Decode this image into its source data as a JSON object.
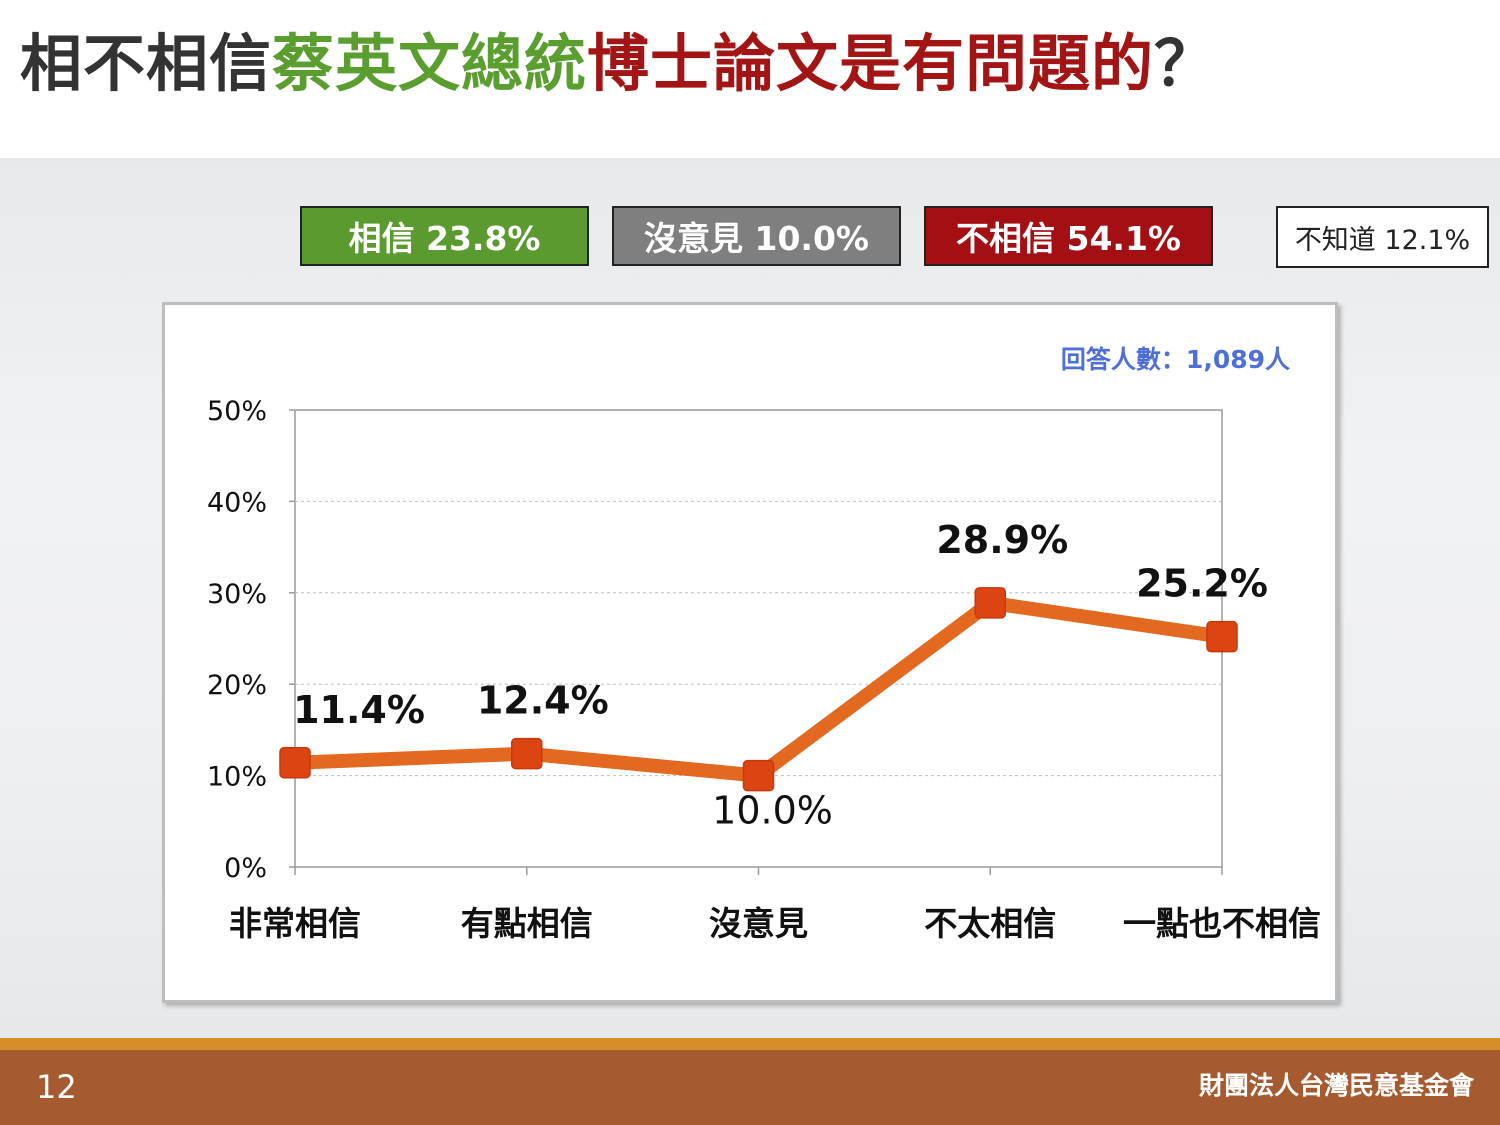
{
  "title": {
    "part1": "相不相信",
    "part2": "蔡英文總統",
    "part3": "博士論文是有問題的",
    "part4": "？"
  },
  "summary": {
    "believe": "相信 23.8%",
    "no_opinion": "沒意見 10.0%",
    "disbelieve": "不相信 54.1%",
    "unknown": "不知道 12.1%"
  },
  "colors": {
    "line": "#e2691f",
    "marker": "#dc4412",
    "believe": "#5a9a2e",
    "no_opinion": "#7f7f7f",
    "disbelieve": "#a30f12",
    "sample_note": "#4f6fd8"
  },
  "chart_data": {
    "type": "line",
    "categories": [
      "非常相信",
      "有點相信",
      "沒意見",
      "不太相信",
      "一點也不相信"
    ],
    "values": [
      11.4,
      12.4,
      10.0,
      28.9,
      25.2
    ],
    "data_labels": [
      "11.4%",
      "12.4%",
      "10.0%",
      "28.9%",
      "25.2%"
    ],
    "yticks": [
      "0%",
      "10%",
      "20%",
      "30%",
      "40%",
      "50%"
    ],
    "ylim": [
      0,
      50
    ],
    "grid": true,
    "annotation": "回答人數：1,089人"
  },
  "footer": {
    "page_number": "12",
    "organization": "財團法人台灣民意基金會"
  }
}
